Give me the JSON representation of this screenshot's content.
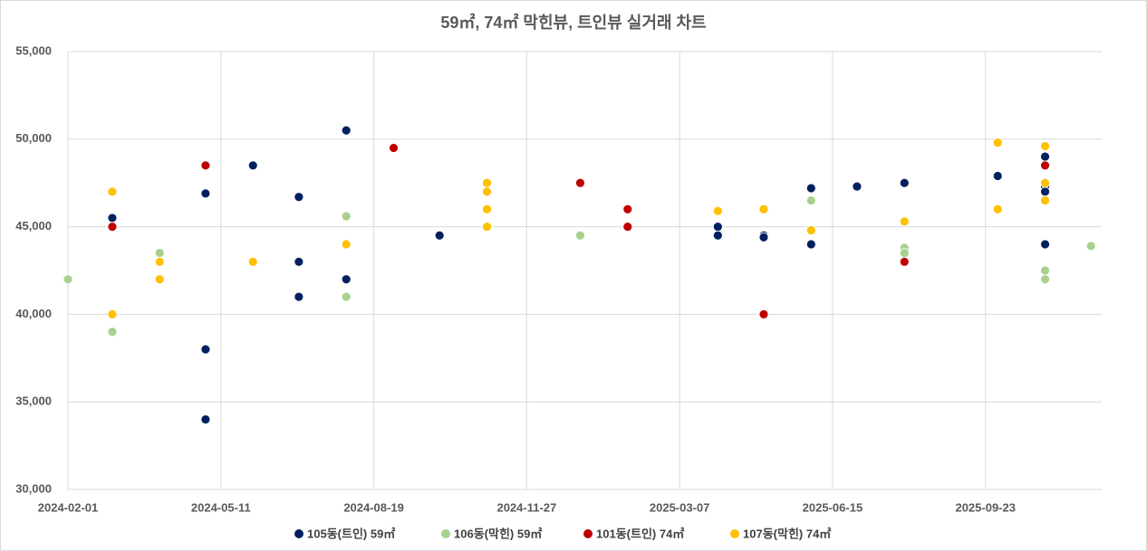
{
  "chart_data": {
    "type": "scatter",
    "title": "59㎡, 74㎡ 막힌뷰, 트인뷰 실거래 차트",
    "xlim": [
      "2024-02-01",
      "2025-12-08"
    ],
    "xticks": [
      "2024-02-01",
      "2024-05-11",
      "2024-08-19",
      "2024-11-27",
      "2025-03-07",
      "2025-06-15",
      "2025-09-23"
    ],
    "ylim": [
      30000,
      55000
    ],
    "yticks": [
      {
        "value": 30000,
        "label": "30,000"
      },
      {
        "value": 35000,
        "label": "35,000"
      },
      {
        "value": 40000,
        "label": "40,000"
      },
      {
        "value": 45000,
        "label": "45,000"
      },
      {
        "value": 50000,
        "label": "50,000"
      },
      {
        "value": 55000,
        "label": "55,000"
      }
    ],
    "grid": true,
    "legend": "bottom",
    "series": [
      {
        "name": "105동(트인) 59㎡",
        "color": "#002060",
        "x": [
          "2024-03-01",
          "2024-05-01",
          "2024-05-01",
          "2024-05-01",
          "2024-06-01",
          "2024-07-01",
          "2024-07-01",
          "2024-07-01",
          "2024-08-01",
          "2024-08-01",
          "2024-10-01",
          "2025-04-01",
          "2025-04-01",
          "2025-05-01",
          "2025-05-01",
          "2025-06-01",
          "2025-06-01",
          "2025-07-01",
          "2025-08-01",
          "2025-10-01",
          "2025-11-01",
          "2025-11-01",
          "2025-11-01",
          "2025-11-01"
        ],
        "values": [
          45500,
          46900,
          38000,
          34000,
          48500,
          46700,
          43000,
          41000,
          50500,
          42000,
          44500,
          45000,
          44500,
          44500,
          44400,
          47200,
          44000,
          47300,
          47500,
          47900,
          49000,
          47300,
          47000,
          44000
        ]
      },
      {
        "name": "106동(막힌) 59㎡",
        "color": "#a9d18e",
        "x": [
          "2024-02-01",
          "2024-03-01",
          "2024-04-01",
          "2024-08-01",
          "2024-08-01",
          "2025-01-01",
          "2025-06-01",
          "2025-08-01",
          "2025-08-01",
          "2025-11-01",
          "2025-11-01",
          "2025-12-01"
        ],
        "values": [
          42000,
          39000,
          43500,
          45600,
          41000,
          44500,
          46500,
          43800,
          43500,
          42500,
          42000,
          43900
        ]
      },
      {
        "name": "101동(트인) 74㎡",
        "color": "#c00000",
        "x": [
          "2024-03-01",
          "2024-05-01",
          "2024-09-01",
          "2025-01-01",
          "2025-02-01",
          "2025-02-01",
          "2025-05-01",
          "2025-08-01",
          "2025-11-01"
        ],
        "values": [
          45000,
          48500,
          49500,
          47500,
          46000,
          45000,
          40000,
          43000,
          48500
        ]
      },
      {
        "name": "107동(막힌) 74㎡",
        "color": "#ffc000",
        "x": [
          "2024-03-01",
          "2024-03-01",
          "2024-04-01",
          "2024-04-01",
          "2024-06-01",
          "2024-08-01",
          "2024-11-01",
          "2024-11-01",
          "2024-11-01",
          "2024-11-01",
          "2025-04-01",
          "2025-05-01",
          "2025-06-01",
          "2025-08-01",
          "2025-10-01",
          "2025-10-01",
          "2025-11-01",
          "2025-11-01",
          "2025-11-01"
        ],
        "values": [
          47000,
          40000,
          43000,
          42000,
          43000,
          44000,
          47500,
          47000,
          46000,
          45000,
          45900,
          46000,
          44800,
          45300,
          49800,
          46000,
          49600,
          47500,
          46500
        ]
      }
    ]
  }
}
